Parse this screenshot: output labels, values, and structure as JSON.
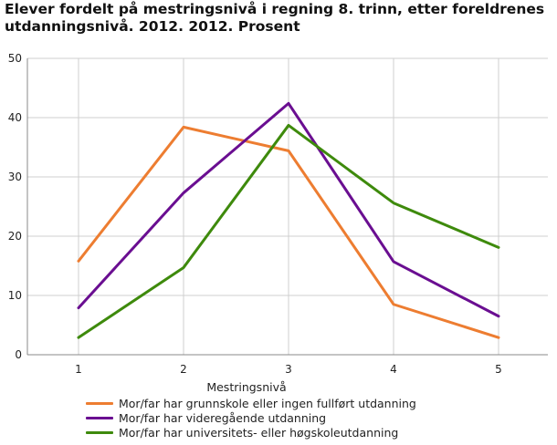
{
  "chart_data": {
    "type": "line",
    "title": "Elever fordelt på mestringsnivå i regning 8. trinn, etter foreldrenes utdanningsnivå. 2012. 2012. Prosent",
    "xlabel": "Mestringsnivå",
    "ylabel": "",
    "x": [
      1,
      2,
      3,
      4,
      5
    ],
    "ylim": [
      0,
      50
    ],
    "yticks": [
      0,
      10,
      20,
      30,
      40,
      50
    ],
    "grid": true,
    "legend_position": "bottom",
    "series": [
      {
        "name": "Mor/far har grunnskole eller ingen fullført utdanning",
        "color": "#ed7d31",
        "values": [
          15.8,
          38.4,
          34.4,
          8.5,
          2.9
        ]
      },
      {
        "name": "Mor/far har videregående utdanning",
        "color": "#6a0e91",
        "values": [
          7.9,
          27.3,
          42.4,
          15.7,
          6.5
        ]
      },
      {
        "name": "Mor/far har universitets- eller høgskoleutdanning",
        "color": "#3e8a0c",
        "values": [
          2.9,
          14.7,
          38.7,
          25.6,
          18.1
        ]
      }
    ]
  }
}
